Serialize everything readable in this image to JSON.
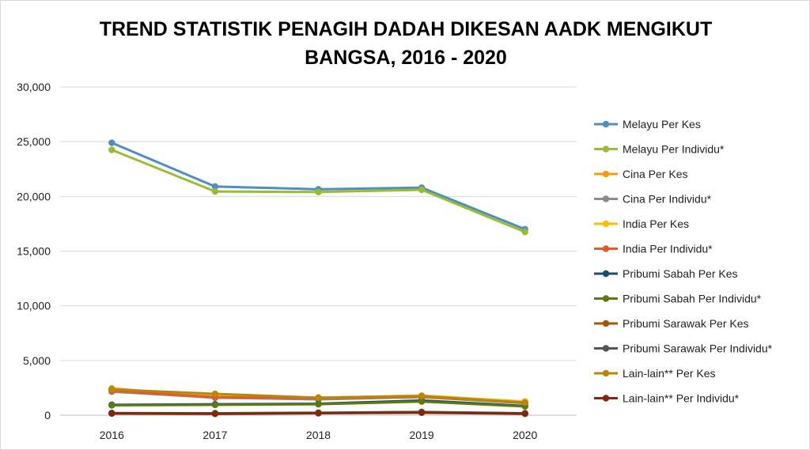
{
  "chart_data": {
    "type": "line",
    "title_lines": [
      "TREND STATISTIK PENAGIH DADAH DIKESAN AADK MENGIKUT",
      "BANGSA, 2016 - 2020"
    ],
    "xlabel": "",
    "ylabel": "",
    "categories": [
      "2016",
      "2017",
      "2018",
      "2019",
      "2020"
    ],
    "y_ticks": [
      "0",
      "5,000",
      "10,000",
      "15,000",
      "20,000",
      "25,000",
      "30,000"
    ],
    "ylim": [
      0,
      30000
    ],
    "grid": true,
    "legend_position": "right",
    "series": [
      {
        "name": "Melayu Per Kes",
        "color": "#4e8fbd",
        "values": [
          24900,
          20900,
          20650,
          20800,
          17000
        ]
      },
      {
        "name": "Melayu Per Individu*",
        "color": "#9bbb36",
        "values": [
          24250,
          20450,
          20400,
          20600,
          16750
        ]
      },
      {
        "name": "Cina Per Kes",
        "color": "#f39c12",
        "values": [
          2450,
          1700,
          1550,
          1750,
          1200
        ]
      },
      {
        "name": "Cina Per Individu*",
        "color": "#8c8c8c",
        "values": [
          2150,
          1600,
          1450,
          1650,
          1100
        ]
      },
      {
        "name": "India Per Kes",
        "color": "#f5c000",
        "values": [
          2350,
          1750,
          1600,
          1800,
          1250
        ]
      },
      {
        "name": "India Per Individu*",
        "color": "#e05a2b",
        "values": [
          2250,
          1650,
          1550,
          1700,
          1150
        ]
      },
      {
        "name": "Pribumi Sabah Per Kes",
        "color": "#1f4e6b",
        "values": [
          950,
          1000,
          1050,
          1350,
          850
        ]
      },
      {
        "name": "Pribumi Sabah Per Individu*",
        "color": "#5c7a12",
        "values": [
          900,
          950,
          1000,
          1250,
          800
        ]
      },
      {
        "name": "Pribumi Sarawak Per Kes",
        "color": "#a0580d",
        "values": [
          200,
          180,
          230,
          300,
          180
        ]
      },
      {
        "name": "Pribumi Sarawak Per Individu*",
        "color": "#555555",
        "values": [
          180,
          160,
          210,
          280,
          160
        ]
      },
      {
        "name": "Lain-lain** Per Kes",
        "color": "#b8860b",
        "values": [
          2350,
          1950,
          1600,
          1750,
          1150
        ]
      },
      {
        "name": "Lain-lain** Per Individu*",
        "color": "#7b2a10",
        "values": [
          150,
          120,
          180,
          230,
          130
        ]
      }
    ]
  }
}
